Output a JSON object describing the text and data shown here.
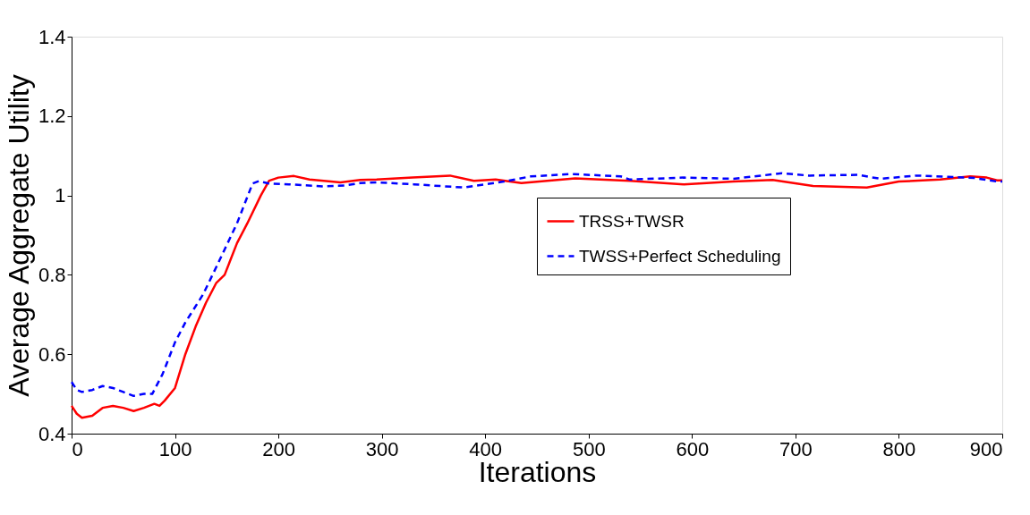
{
  "chart_data": {
    "type": "line",
    "xlabel": "Iterations",
    "ylabel": "Average Aggregate Utility",
    "xlim": [
      0,
      900
    ],
    "xticks": [
      0,
      100,
      200,
      300,
      400,
      500,
      600,
      700,
      800,
      900
    ],
    "ylim": [
      0.4,
      1.4
    ],
    "yticks": [
      0.4,
      0.6,
      0.8,
      1,
      1.2,
      1.4
    ],
    "grid": false,
    "legend": "right",
    "marker": "none",
    "series": [
      {
        "name": "TRSS+TWSR",
        "color": "#ff0000",
        "line_style": "solid",
        "x": [
          0,
          5,
          10,
          20,
          30,
          40,
          50,
          60,
          70,
          80,
          85,
          90,
          100,
          110,
          120,
          130,
          140,
          148,
          160,
          170,
          183,
          191,
          200,
          215,
          230,
          260,
          279,
          295,
          330,
          366,
          389,
          410,
          435,
          487,
          540,
          592,
          640,
          678,
          717,
          769,
          800,
          840,
          869,
          885,
          895,
          900
        ],
        "values": [
          0.47,
          0.45,
          0.44,
          0.445,
          0.465,
          0.47,
          0.465,
          0.457,
          0.465,
          0.475,
          0.47,
          0.483,
          0.515,
          0.6,
          0.67,
          0.73,
          0.78,
          0.8,
          0.88,
          0.93,
          1.0,
          1.037,
          1.045,
          1.049,
          1.04,
          1.033,
          1.039,
          1.04,
          1.045,
          1.05,
          1.037,
          1.04,
          1.031,
          1.043,
          1.037,
          1.028,
          1.035,
          1.039,
          1.024,
          1.02,
          1.035,
          1.04,
          1.048,
          1.045,
          1.038,
          1.038
        ]
      },
      {
        "name": "TWSS+Perfect Scheduling",
        "color": "#0000ff",
        "line_style": "dashed",
        "x": [
          0,
          5,
          10,
          20,
          30,
          40,
          50,
          60,
          70,
          78,
          88,
          100,
          110,
          127,
          140,
          160,
          175,
          181,
          191,
          210,
          243,
          264,
          279,
          295,
          331,
          379,
          418,
          444,
          483,
          531,
          540,
          592,
          640,
          687,
          713,
          760,
          782,
          817,
          873,
          895,
          900
        ],
        "values": [
          0.53,
          0.51,
          0.505,
          0.51,
          0.52,
          0.515,
          0.505,
          0.495,
          0.5,
          0.5,
          0.55,
          0.63,
          0.68,
          0.75,
          0.82,
          0.93,
          1.03,
          1.036,
          1.03,
          1.028,
          1.023,
          1.025,
          1.031,
          1.033,
          1.028,
          1.02,
          1.035,
          1.048,
          1.054,
          1.048,
          1.04,
          1.045,
          1.042,
          1.056,
          1.05,
          1.052,
          1.042,
          1.05,
          1.044,
          1.035,
          1.035
        ]
      }
    ]
  }
}
